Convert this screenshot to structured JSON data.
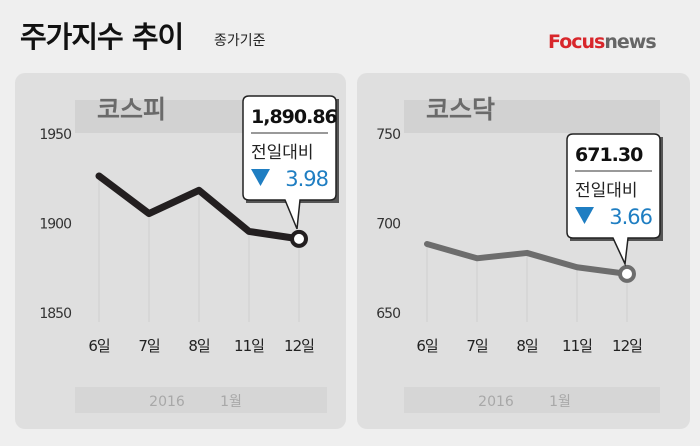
{
  "header": {
    "title": "주가지수 추이",
    "subtitle": "종가기준"
  },
  "logo": {
    "text_focus": "Focus",
    "text_news": "news",
    "brand_color": "#d8262b"
  },
  "colors": {
    "down": "#1f7ec2",
    "kospi_line": "#231f20",
    "kosdaq_line": "#6d6d6d"
  },
  "chart_data": [
    {
      "type": "line",
      "title": "코스피",
      "categories": [
        "6일",
        "7일",
        "8일",
        "11일",
        "12일"
      ],
      "values": [
        1926,
        1905,
        1918,
        1895,
        1890.86
      ],
      "ylim": [
        1850,
        1950
      ],
      "yticks": [
        "1950",
        "1900",
        "1850"
      ],
      "xlabel_year": "2016",
      "xlabel_month": "1월",
      "callout": {
        "value": "1,890.86",
        "label": "전일대비",
        "change": "3.98",
        "direction": "down"
      }
    },
    {
      "type": "line",
      "title": "코스닥",
      "categories": [
        "6일",
        "7일",
        "8일",
        "11일",
        "12일"
      ],
      "values": [
        688,
        680,
        683,
        675,
        671.3
      ],
      "ylim": [
        650,
        750
      ],
      "yticks": [
        "750",
        "700",
        "650"
      ],
      "xlabel_year": "2016",
      "xlabel_month": "1월",
      "callout": {
        "value": "671.30",
        "label": "전일대비",
        "change": "3.66",
        "direction": "down"
      }
    }
  ]
}
